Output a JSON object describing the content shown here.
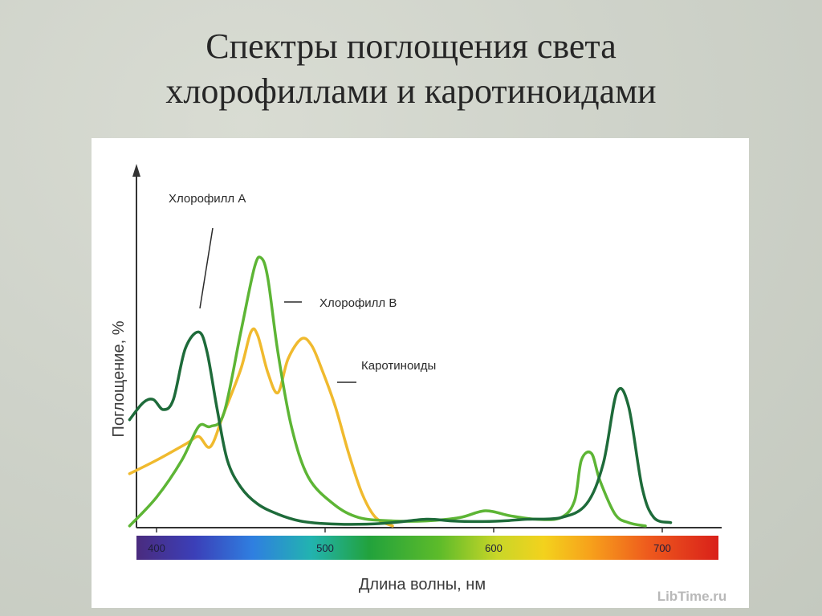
{
  "slide": {
    "title_line1": "Спектры поглощения света",
    "title_line2": "хлорофиллами и каротиноидами"
  },
  "watermark": "LibTime.ru",
  "chart_data": {
    "type": "line",
    "xlabel": "Длина волны, нм",
    "ylabel": "Поглощение, %",
    "xlim": [
      395,
      740
    ],
    "ylim": [
      0,
      100
    ],
    "x_ticks": [
      "400",
      "500",
      "600",
      "700"
    ],
    "x_tick_values": [
      400,
      500,
      600,
      700
    ],
    "spectrum_bar": true,
    "series": [
      {
        "name": "Хлорофилл А",
        "color": "#1e6b3a",
        "points": [
          [
            384,
            32
          ],
          [
            392,
            37
          ],
          [
            398,
            38
          ],
          [
            404,
            35
          ],
          [
            410,
            38
          ],
          [
            417,
            53
          ],
          [
            425,
            58
          ],
          [
            430,
            52
          ],
          [
            436,
            35
          ],
          [
            442,
            20
          ],
          [
            450,
            12
          ],
          [
            460,
            7
          ],
          [
            472,
            4
          ],
          [
            485,
            2
          ],
          [
            500,
            1.2
          ],
          [
            520,
            1
          ],
          [
            540,
            1.5
          ],
          [
            560,
            2.5
          ],
          [
            575,
            2
          ],
          [
            590,
            1.8
          ],
          [
            605,
            2
          ],
          [
            620,
            2.5
          ],
          [
            640,
            3
          ],
          [
            655,
            7
          ],
          [
            665,
            19
          ],
          [
            673,
            40
          ],
          [
            680,
            36
          ],
          [
            688,
            12
          ],
          [
            695,
            3
          ],
          [
            705,
            1.5
          ]
        ]
      },
      {
        "name": "Хлорофилл В",
        "color": "#5db535",
        "points": [
          [
            384,
            0.5
          ],
          [
            400,
            9
          ],
          [
            415,
            20
          ],
          [
            425,
            30
          ],
          [
            432,
            30
          ],
          [
            440,
            34
          ],
          [
            450,
            58
          ],
          [
            458,
            77
          ],
          [
            462,
            80
          ],
          [
            466,
            74
          ],
          [
            472,
            52
          ],
          [
            480,
            30
          ],
          [
            490,
            15
          ],
          [
            505,
            7
          ],
          [
            520,
            3
          ],
          [
            540,
            2
          ],
          [
            560,
            2
          ],
          [
            580,
            3
          ],
          [
            595,
            5
          ],
          [
            610,
            3.5
          ],
          [
            625,
            2.5
          ],
          [
            640,
            3
          ],
          [
            648,
            8
          ],
          [
            652,
            20
          ],
          [
            658,
            22
          ],
          [
            663,
            14
          ],
          [
            672,
            4
          ],
          [
            680,
            1.5
          ],
          [
            690,
            0.5
          ]
        ]
      },
      {
        "name": "Каротиноиды",
        "color": "#f0ba2e",
        "points": [
          [
            384,
            16
          ],
          [
            400,
            20
          ],
          [
            418,
            25
          ],
          [
            425,
            27
          ],
          [
            432,
            24
          ],
          [
            440,
            34
          ],
          [
            450,
            47
          ],
          [
            456,
            58
          ],
          [
            460,
            57
          ],
          [
            466,
            46
          ],
          [
            472,
            40
          ],
          [
            478,
            50
          ],
          [
            486,
            56
          ],
          [
            492,
            54
          ],
          [
            498,
            47
          ],
          [
            506,
            36
          ],
          [
            514,
            22
          ],
          [
            522,
            10
          ],
          [
            530,
            3
          ],
          [
            540,
            0.5
          ]
        ]
      }
    ]
  }
}
